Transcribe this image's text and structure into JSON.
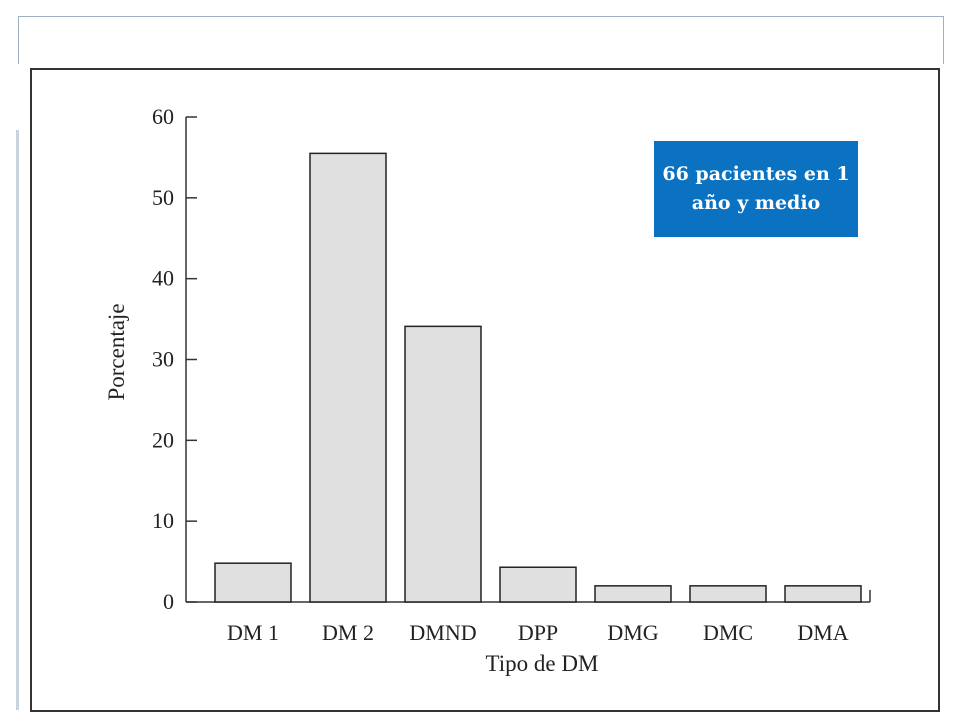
{
  "chart_data": {
    "type": "bar",
    "categories": [
      "DM 1",
      "DM 2",
      "DMND",
      "DPP",
      "DMG",
      "DMC",
      "DMA"
    ],
    "values": [
      4.8,
      55.5,
      34.1,
      4.3,
      2.0,
      2.0,
      2.0
    ],
    "xlabel": "Tipo de DM",
    "ylabel": "Porcentaje",
    "ylim": [
      0,
      60
    ],
    "yticks": [
      0,
      10,
      20,
      30,
      40,
      50,
      60
    ],
    "grid": false,
    "bar_color": "#e0e0e0",
    "bar_edge_color": "#222222"
  },
  "annotation": {
    "text": "66 pacientes en 1 año y medio",
    "background": "#0b72c1",
    "color": "#ffffff"
  }
}
